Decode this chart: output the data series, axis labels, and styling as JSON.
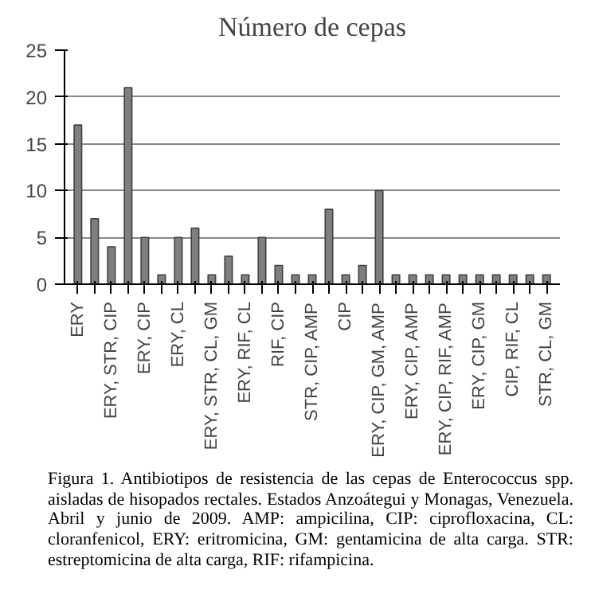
{
  "chart_data": {
    "type": "bar",
    "title": "Número de cepas",
    "categories": [
      "ERY",
      null,
      "ERY, STR, CIP",
      null,
      "ERY, CIP",
      null,
      "ERY, CL",
      null,
      "ERY, STR, CL, GM",
      null,
      "ERY, RIF, CL",
      null,
      "RIF, CIP",
      null,
      "STR, CIP, AMP",
      null,
      "CIP",
      null,
      "ERY, CIP, GM, AMP",
      null,
      "ERY, CIP, AMP",
      null,
      "ERY, CIP, RIF, AMP",
      null,
      "ERY, CIP, GM",
      null,
      "CIP, RIF, CL",
      null,
      "STR, CL, GM"
    ],
    "values": [
      17,
      7,
      4,
      21,
      5,
      1,
      5,
      6,
      1,
      3,
      1,
      5,
      2,
      1,
      1,
      8,
      1,
      2,
      10,
      1,
      1,
      1,
      1,
      1,
      1,
      1,
      1,
      1,
      1
    ],
    "color": "#7f7f7f",
    "ylim": [
      0,
      25
    ],
    "yticks": [
      0,
      5,
      10,
      15,
      20,
      25
    ],
    "grid": "y",
    "annotations": [
      "Figura 1. Antibiotipos de resistencia de las cepas de Enterococcus spp. aisladas de hisopados rectales. Estados Anzoátegui y Monagas, Venezuela. Abril y junio de 2009. AMP: ampicilina, CIP: ciprofloxacina, CL: cloranfenicol, ERY: eritromicina, GM: gentamicina de alta carga. STR: estreptomicina de alta carga, RIF: rifampicina."
    ]
  }
}
